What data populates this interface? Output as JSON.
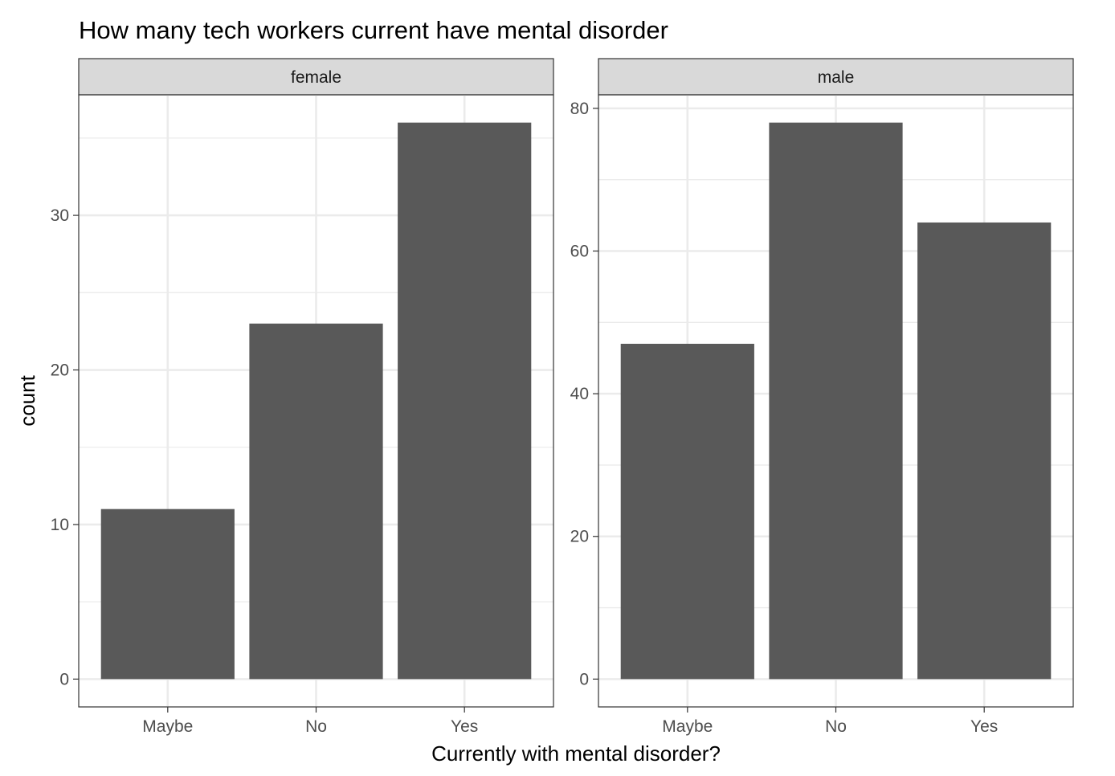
{
  "chart_data": {
    "type": "bar",
    "title": "How many tech workers current have mental disorder",
    "xlabel": "Currently with mental disorder?",
    "ylabel": "count",
    "categories": [
      "Maybe",
      "No",
      "Yes"
    ],
    "bar_color": "#595959",
    "grid": true,
    "panels": [
      {
        "name": "female",
        "values": [
          11,
          23,
          36
        ],
        "ylim": [
          -1.8,
          37.8
        ],
        "yticks": [
          0,
          10,
          20,
          30
        ],
        "ytick_labels": [
          "0",
          "10",
          "20",
          "30"
        ],
        "yminor": [
          5,
          15,
          25,
          35
        ]
      },
      {
        "name": "male",
        "values": [
          47,
          78,
          64
        ],
        "ylim": [
          -3.9,
          81.9
        ],
        "yticks": [
          0,
          20,
          40,
          60,
          80
        ],
        "ytick_labels": [
          "0",
          "20",
          "40",
          "60",
          "80"
        ],
        "yminor": [
          10,
          30,
          50,
          70
        ]
      }
    ]
  }
}
